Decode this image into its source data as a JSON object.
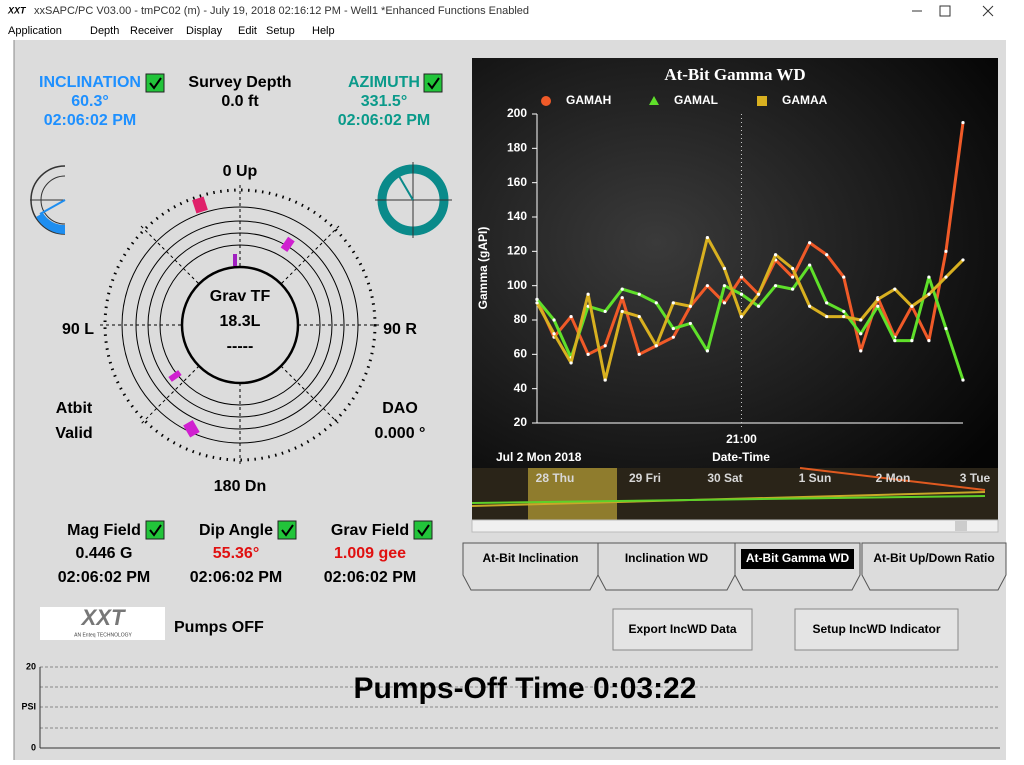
{
  "window": {
    "app_icon": "XXT",
    "title": "xxSAPC/PC    V03.00  - tmPC02 (m) - July 19, 2018 02:16:12 PM - Well1 *Enhanced Functions Enabled"
  },
  "menu": [
    "Application",
    "Depth",
    "Receiver",
    "Display",
    "Edit",
    "Setup",
    "Help"
  ],
  "readouts": {
    "inclination": {
      "label": "INCLINATION",
      "value": "60.3°",
      "time": "02:06:02 PM"
    },
    "survey_depth": {
      "label": "Survey Depth",
      "value": "0.0 ft"
    },
    "azimuth": {
      "label": "AZIMUTH",
      "value": "331.5°",
      "time": "02:06:02 PM"
    },
    "mag_field": {
      "label": "Mag Field",
      "value": "0.446 G",
      "time": "02:06:02 PM"
    },
    "dip_angle": {
      "label": "Dip Angle",
      "value": "55.36°",
      "time": "02:06:02 PM"
    },
    "grav_field": {
      "label": "Grav Field",
      "value": "1.009 gee",
      "time": "02:06:02 PM"
    }
  },
  "toolface": {
    "top": "0 Up",
    "left": "90 L",
    "right": "90 R",
    "bottom": "180 Dn",
    "label": "Grav TF",
    "value": "18.3L",
    "status": "-----"
  },
  "atbit": [
    "Atbit",
    "Valid"
  ],
  "dao": {
    "label": "DAO",
    "value": "0.000 °"
  },
  "logo": {
    "name": "XXT",
    "tagline": "AN Enteq TECHNOLOGY"
  },
  "pumps": "Pumps OFF",
  "chart_data": {
    "type": "line",
    "title": "At-Bit Gamma WD",
    "ylabel": "Gamma (gAPI)",
    "xlabel": "Date-Time",
    "x_date": "Jul 2 Mon 2018",
    "categories": [
      null,
      null,
      null,
      null,
      null,
      null,
      null,
      null,
      null,
      null,
      null,
      null,
      "21:00",
      null,
      null,
      null,
      null,
      null,
      null,
      null,
      null,
      null,
      null,
      null,
      null,
      null
    ],
    "series": [
      {
        "name": "GAMAH",
        "color": "#f05a28",
        "marker": "circle",
        "values": [
          92,
          70,
          82,
          60,
          65,
          93,
          60,
          65,
          70,
          88,
          100,
          90,
          105,
          95,
          115,
          105,
          125,
          118,
          105,
          62,
          93,
          70,
          88,
          68,
          120,
          195
        ]
      },
      {
        "name": "GAMAL",
        "color": "#5fe02a",
        "marker": "triangle",
        "values": [
          92,
          80,
          58,
          88,
          85,
          98,
          95,
          90,
          75,
          78,
          62,
          100,
          95,
          88,
          100,
          98,
          112,
          90,
          85,
          72,
          88,
          68,
          68,
          105,
          75,
          45
        ]
      },
      {
        "name": "GAMAA",
        "color": "#d8b020",
        "marker": "square",
        "values": [
          90,
          72,
          55,
          95,
          45,
          85,
          82,
          65,
          90,
          88,
          128,
          110,
          82,
          95,
          118,
          110,
          88,
          82,
          82,
          80,
          92,
          98,
          88,
          95,
          105,
          115
        ]
      }
    ],
    "ylim": [
      20,
      200
    ],
    "yticks": [
      20,
      40,
      60,
      80,
      100,
      120,
      140,
      160,
      180,
      200
    ],
    "grid": false
  },
  "navigator": [
    "28 Thu",
    "29 Fri",
    "30 Sat",
    "1 Sun",
    "2 Mon",
    "3 Tue"
  ],
  "tabs": [
    "At-Bit Inclination",
    "Inclination WD",
    "At-Bit Gamma WD",
    "At-Bit Up/Down Ratio"
  ],
  "buttons": [
    "Export IncWD Data",
    "Setup IncWD Indicator"
  ],
  "pressure": {
    "ymax": "20",
    "unit": "PSI",
    "ymin": "0",
    "message": "Pumps-Off Time 0:03:22"
  }
}
